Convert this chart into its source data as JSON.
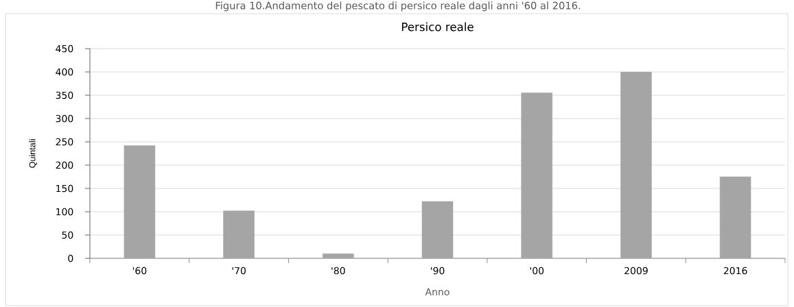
{
  "chart_data": {
    "type": "bar",
    "title": "Persico reale",
    "annotations": [
      "Figura 10.Andamento del pescato di persico reale dagli anni '60 al 2016."
    ],
    "xlabel": "Anno",
    "ylabel": "Quintali",
    "categories": [
      "'60",
      "'70",
      "'80",
      "'90",
      "'00",
      "2009",
      "2016"
    ],
    "values": [
      242,
      102,
      10,
      122,
      355,
      400,
      175
    ],
    "color": "#a5a5a5",
    "ylim": [
      0,
      450
    ],
    "yticks": [
      0,
      50,
      100,
      150,
      200,
      250,
      300,
      350,
      400,
      450
    ],
    "grid": "y"
  }
}
